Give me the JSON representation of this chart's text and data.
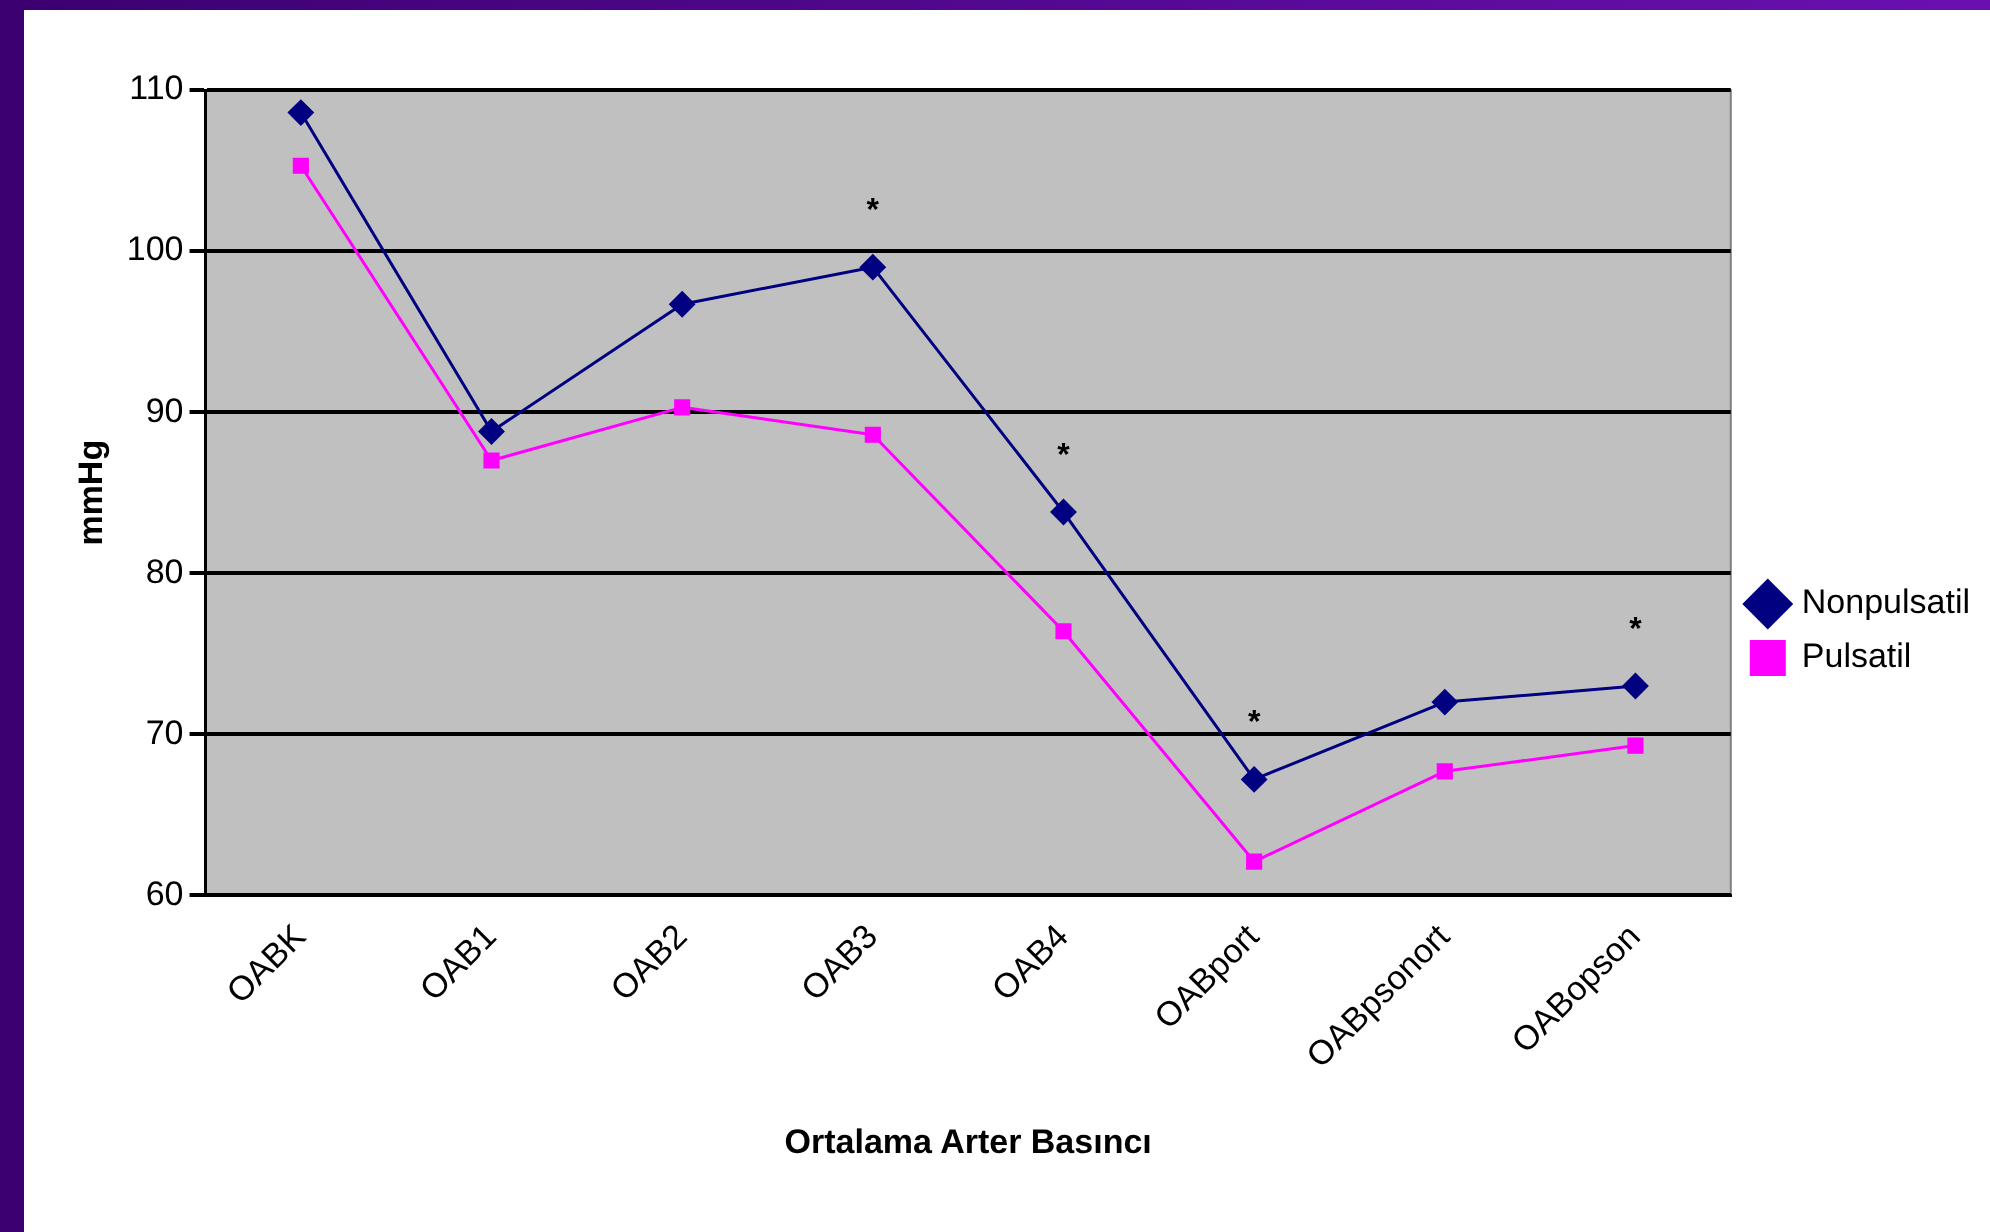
{
  "chart_data": {
    "type": "line",
    "xlabel": "Ortalama Arter Basıncı",
    "ylabel": "mmHg",
    "categories": [
      "OABK",
      "OAB1",
      "OAB2",
      "OAB3",
      "OAB4",
      "OABport",
      "OABpsonort",
      "OABopson"
    ],
    "series": [
      {
        "name": "Nonpulsatil",
        "color": "#000080",
        "marker": "diamond",
        "values": [
          108.6,
          88.8,
          96.7,
          99.0,
          83.8,
          67.2,
          72.0,
          73.0
        ]
      },
      {
        "name": "Pulsatil",
        "color": "#ff00ff",
        "marker": "square",
        "values": [
          105.3,
          87.0,
          90.3,
          88.6,
          76.4,
          62.1,
          67.7,
          69.3
        ]
      }
    ],
    "ylim": [
      60,
      110
    ],
    "yticks": [
      60,
      70,
      80,
      90,
      100,
      110
    ],
    "grid": "y",
    "legend": "right",
    "line_style": "solid",
    "annotations": [
      {
        "text": "*",
        "x": "OAB3",
        "y": 99.0
      },
      {
        "text": "*",
        "x": "OAB4",
        "y": 83.8
      },
      {
        "text": "*",
        "x": "OABport",
        "y": 67.2
      },
      {
        "text": "*",
        "x": "OABopson",
        "y": 73.0
      }
    ]
  }
}
